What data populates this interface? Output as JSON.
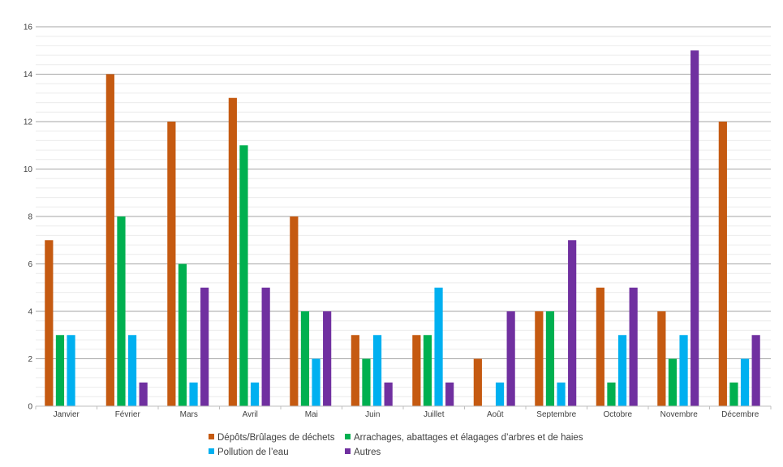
{
  "chart_data": {
    "type": "bar",
    "title": "",
    "xlabel": "",
    "ylabel": "",
    "ylim": [
      0,
      16
    ],
    "yticks": [
      0,
      2,
      4,
      6,
      8,
      10,
      12,
      14,
      16
    ],
    "grid": true,
    "legend_position": "bottom",
    "categories": [
      "Janvier",
      "Février",
      "Mars",
      "Avril",
      "Mai",
      "Juin",
      "Juillet",
      "Août",
      "Septembre",
      "Octobre",
      "Novembre",
      "Décembre"
    ],
    "series": [
      {
        "name": "Dépôts/Brûlages de déchets",
        "color": "#c55a11",
        "values": [
          7,
          14,
          12,
          13,
          8,
          3,
          3,
          2,
          4,
          5,
          4,
          12
        ]
      },
      {
        "name": "Arrachages, abattages et élagages d’arbres et de haies",
        "color": "#00b050",
        "values": [
          3,
          8,
          6,
          11,
          4,
          2,
          3,
          0,
          4,
          1,
          2,
          1
        ]
      },
      {
        "name": "Pollution de l’eau",
        "color": "#00b0f0",
        "values": [
          3,
          3,
          1,
          1,
          2,
          3,
          5,
          1,
          1,
          3,
          3,
          2
        ]
      },
      {
        "name": "Autres",
        "color": "#7030a0",
        "values": [
          0,
          1,
          5,
          5,
          4,
          1,
          1,
          4,
          7,
          5,
          15,
          3
        ]
      }
    ]
  }
}
